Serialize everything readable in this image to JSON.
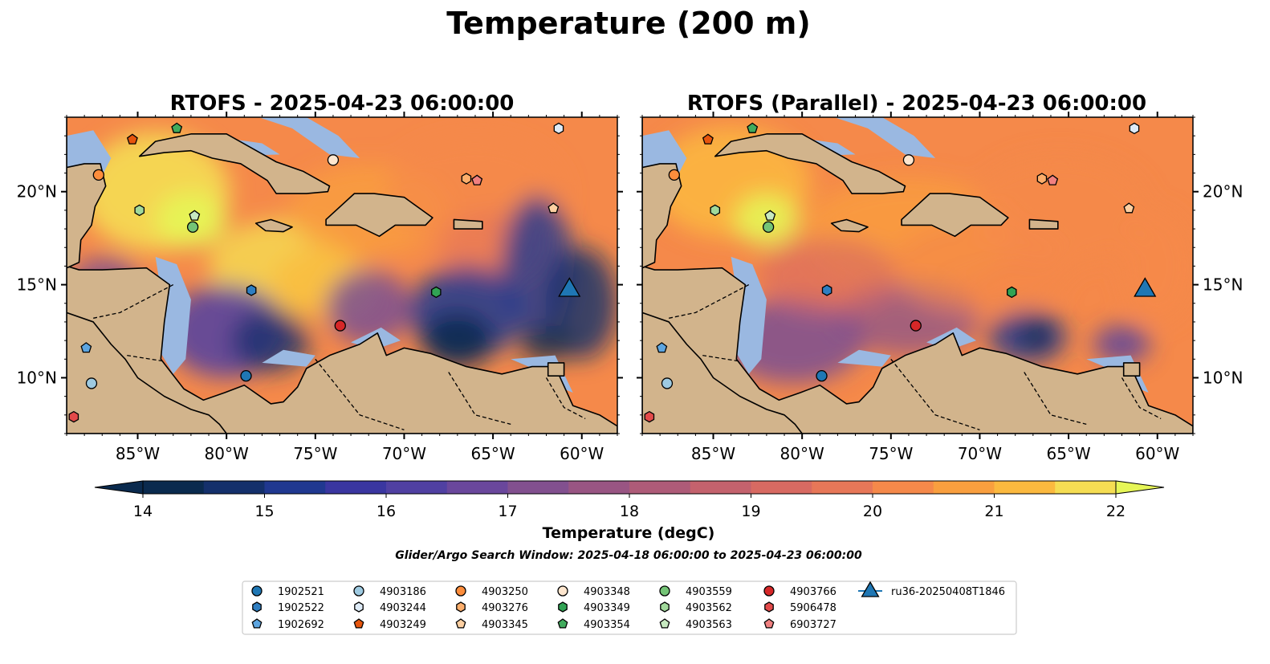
{
  "figure": {
    "title": "Temperature (200 m)",
    "search_window": "Glider/Argo Search Window: 2025-04-18 06:00:00 to 2025-04-23 06:00:00"
  },
  "maps": [
    {
      "title": "RTOFS - 2025-04-23 06:00:00",
      "id": "rtofs"
    },
    {
      "title": "RTOFS (Parallel) - 2025-04-23 06:00:00",
      "id": "rtofs-parallel"
    }
  ],
  "axes": {
    "lon_range": [
      -89,
      -58
    ],
    "lat_range": [
      7,
      24
    ],
    "x_ticks": [
      {
        "value": -85,
        "label": "85°W"
      },
      {
        "value": -80,
        "label": "80°W"
      },
      {
        "value": -75,
        "label": "75°W"
      },
      {
        "value": -70,
        "label": "70°W"
      },
      {
        "value": -65,
        "label": "65°W"
      },
      {
        "value": -60,
        "label": "60°W"
      }
    ],
    "y_ticks": [
      {
        "value": 10,
        "label": "10°N"
      },
      {
        "value": 15,
        "label": "15°N"
      },
      {
        "value": 20,
        "label": "20°N"
      }
    ]
  },
  "colorbar": {
    "label": "Temperature (degC)",
    "min": 14,
    "max": 22,
    "step": 0.5,
    "ticks": [
      "14",
      "15",
      "16",
      "17",
      "18",
      "19",
      "20",
      "21",
      "22"
    ],
    "colors": [
      "#0a2a4e",
      "#14306b",
      "#203890",
      "#3a36a0",
      "#5040a2",
      "#6a479c",
      "#82508f",
      "#995583",
      "#ae5b78",
      "#c4626d",
      "#d86a62",
      "#e77758",
      "#f5894a",
      "#f99f3f",
      "#fbb93f",
      "#f5dd53",
      "#e6f657"
    ]
  },
  "land_color": "#d2b48c",
  "shallow_color": "#9ab8e1",
  "floats": [
    {
      "id": "1902521",
      "marker": "circle",
      "color": "#1f77b4",
      "lon": -78.9,
      "lat": 10.1
    },
    {
      "id": "1902522",
      "marker": "hexagon",
      "color": "#2f7ec1",
      "lon": -78.6,
      "lat": 14.7
    },
    {
      "id": "1902692",
      "marker": "pentagon",
      "color": "#5da5e0",
      "lon": -87.9,
      "lat": 11.6
    },
    {
      "id": "4903186",
      "marker": "circle",
      "color": "#9ecae1",
      "lon": -87.6,
      "lat": 9.7
    },
    {
      "id": "4903244",
      "marker": "hexagon",
      "color": "#deebf7",
      "lon": -61.3,
      "lat": 23.4
    },
    {
      "id": "4903249",
      "marker": "pentagon",
      "color": "#e6550d",
      "lon": -85.3,
      "lat": 22.8
    },
    {
      "id": "4903250",
      "marker": "circle",
      "color": "#fd8d3c",
      "lon": -87.2,
      "lat": 20.9
    },
    {
      "id": "4903276",
      "marker": "hexagon",
      "color": "#fdae6b",
      "lon": -66.5,
      "lat": 20.7
    },
    {
      "id": "4903345",
      "marker": "pentagon",
      "color": "#fdd0a2",
      "lon": -61.6,
      "lat": 19.1
    },
    {
      "id": "4903348",
      "marker": "circle",
      "color": "#fee6ce",
      "lon": -74.0,
      "lat": 21.7
    },
    {
      "id": "4903349",
      "marker": "hexagon",
      "color": "#31a354",
      "lon": -68.2,
      "lat": 14.6
    },
    {
      "id": "4903354",
      "marker": "pentagon",
      "color": "#41ab5d",
      "lon": -82.8,
      "lat": 23.4
    },
    {
      "id": "4903559",
      "marker": "circle",
      "color": "#74c476",
      "lon": -81.9,
      "lat": 18.1
    },
    {
      "id": "4903562",
      "marker": "hexagon",
      "color": "#a1d99b",
      "lon": -84.9,
      "lat": 19.0
    },
    {
      "id": "4903563",
      "marker": "pentagon",
      "color": "#c7e9c0",
      "lon": -81.8,
      "lat": 18.7
    },
    {
      "id": "4903766",
      "marker": "circle",
      "color": "#d62728",
      "lon": -73.6,
      "lat": 12.8
    },
    {
      "id": "5906478",
      "marker": "hexagon",
      "color": "#e34a4a",
      "lon": -88.6,
      "lat": 7.9
    },
    {
      "id": "6903727",
      "marker": "pentagon",
      "color": "#f08080",
      "lon": -65.9,
      "lat": 20.6
    },
    {
      "id": "ru36-20250408T1846",
      "marker": "triangle",
      "color": "#1f77b4",
      "lon": -60.7,
      "lat": 14.7
    }
  ]
}
